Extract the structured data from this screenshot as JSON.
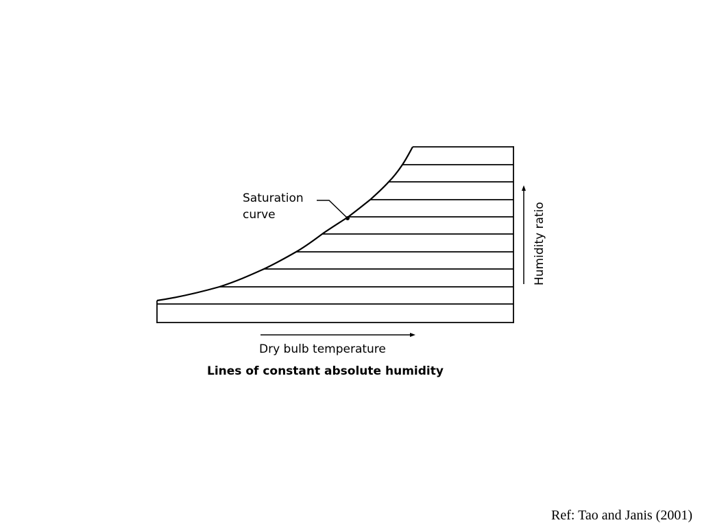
{
  "annotation": {
    "line1": "Saturation",
    "line2": "curve"
  },
  "x_axis_label": "Dry bulb temperature",
  "y_axis_label": "Humidity ratio",
  "caption": "Lines of constant absolute humidity",
  "reference": "Ref: Tao and Janis (2001)"
}
